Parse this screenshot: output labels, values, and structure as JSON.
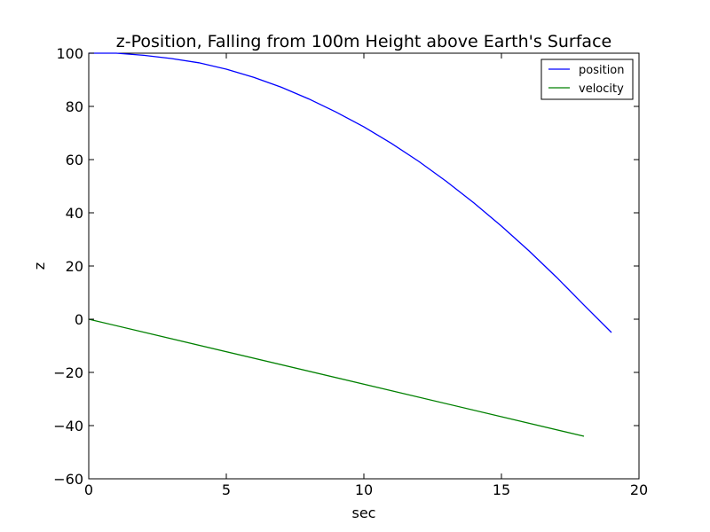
{
  "chart_data": {
    "type": "line",
    "title": "z-Position, Falling from 100m Height above Earth's Surface",
    "xlabel": "sec",
    "ylabel": "z",
    "xlim": [
      0,
      20
    ],
    "ylim": [
      -60,
      100
    ],
    "xticks": [
      0,
      5,
      10,
      15,
      20
    ],
    "xtick_labels": [
      "0",
      "5",
      "10",
      "15",
      "20"
    ],
    "yticks": [
      -60,
      -40,
      -20,
      0,
      20,
      40,
      60,
      80,
      100
    ],
    "ytick_labels": [
      "−60",
      "−40",
      "−20",
      "0",
      "20",
      "40",
      "60",
      "80",
      "100"
    ],
    "grid": false,
    "legend_position": "top-right",
    "series": [
      {
        "name": "position",
        "color": "#0000ff",
        "x": [
          0,
          1,
          2,
          3,
          4,
          5,
          6,
          7,
          8,
          9,
          10,
          11,
          12,
          13,
          14,
          15,
          16,
          17,
          18,
          19
        ],
        "values": [
          100,
          100.0,
          99.2,
          98.0,
          96.4,
          94.0,
          90.9,
          87.2,
          82.8,
          77.8,
          72.3,
          66.1,
          59.3,
          51.8,
          43.7,
          35.0,
          25.7,
          15.8,
          5.3,
          -5.0
        ]
      },
      {
        "name": "velocity",
        "color": "#008000",
        "x": [
          0,
          18
        ],
        "values": [
          0,
          -44.0
        ]
      }
    ]
  }
}
